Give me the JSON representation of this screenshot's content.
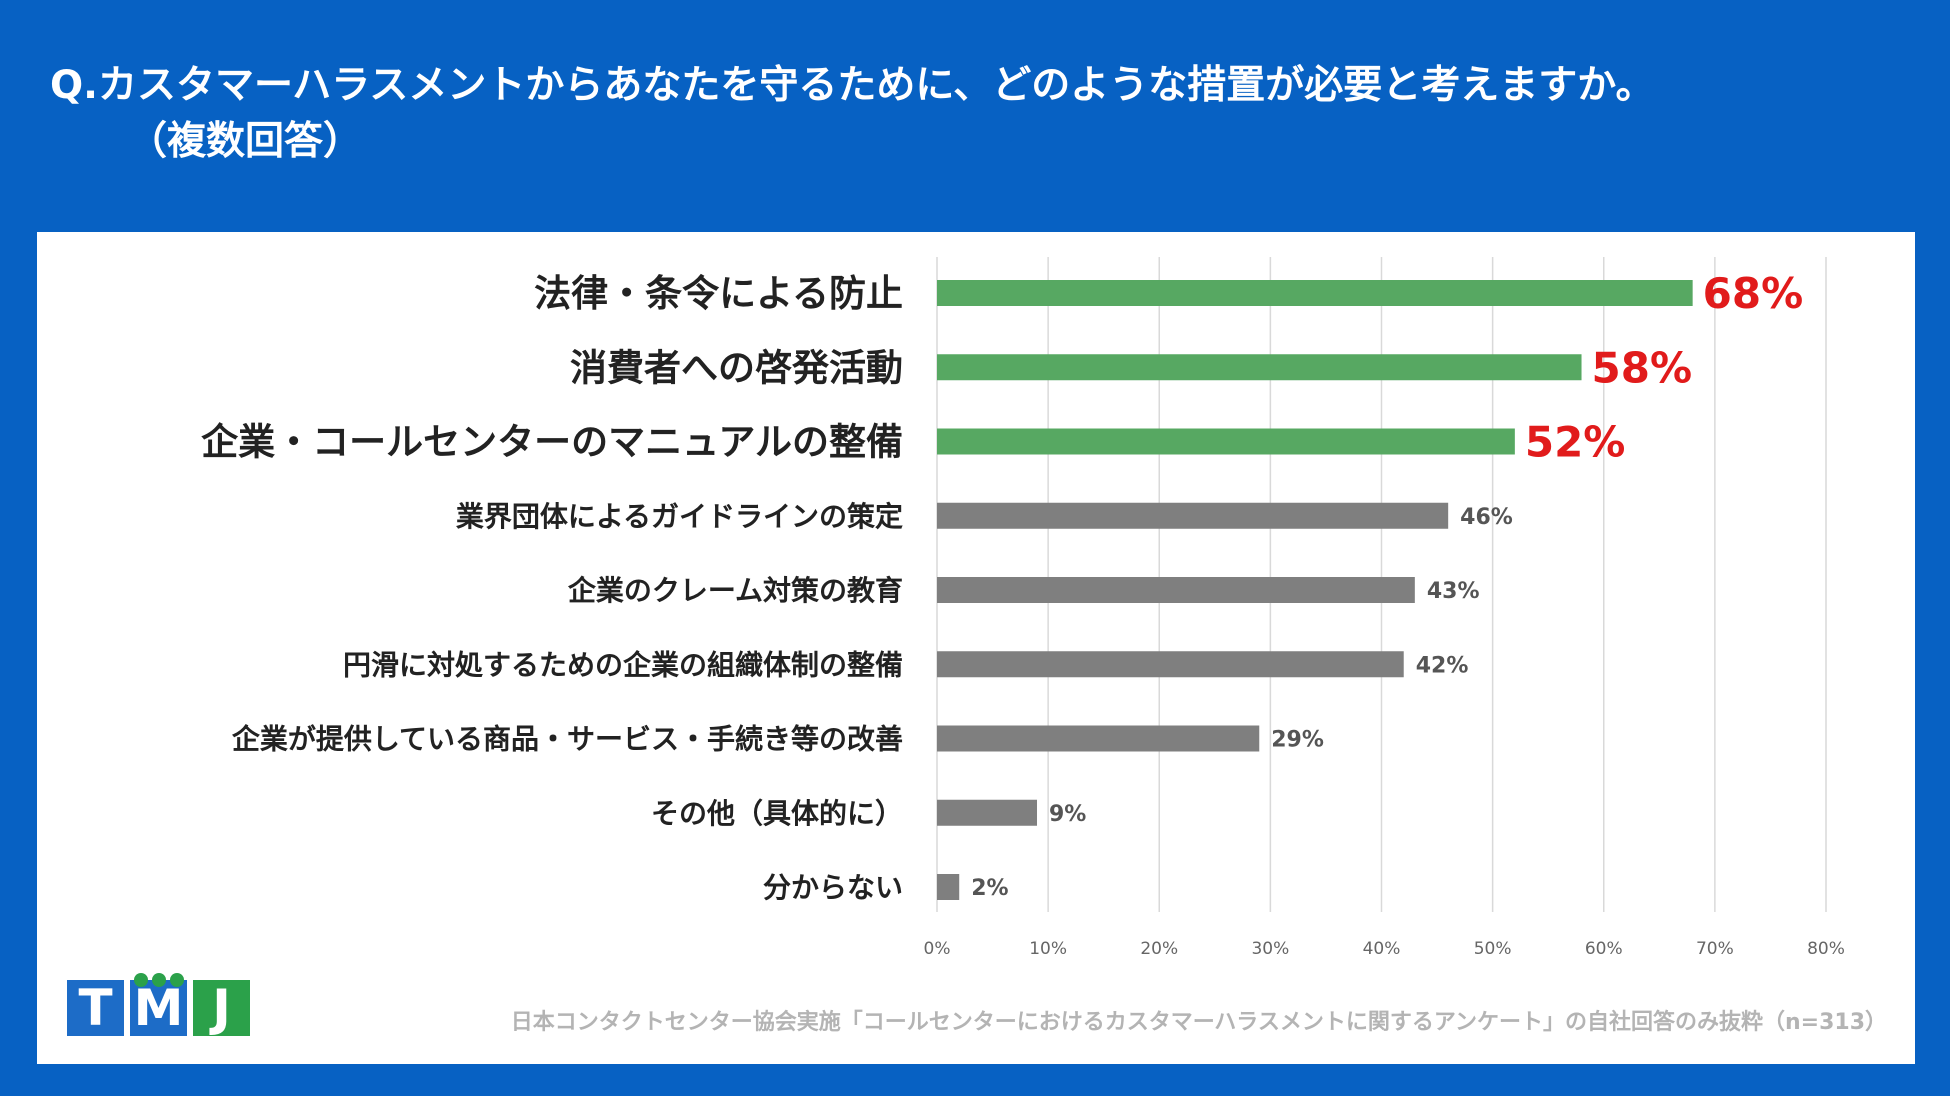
{
  "header": {
    "title_line1": "Q.カスタマーハラスメントからあなたを守るために、どのような措置が必要と考えますか。",
    "title_line2": "（複数回答）"
  },
  "chart_data": {
    "type": "bar",
    "orientation": "horizontal",
    "categories": [
      "法律・条令による防止",
      "消費者への啓発活動",
      "企業・コールセンターのマニュアルの整備",
      "業界団体によるガイドラインの策定",
      "企業のクレーム対策の教育",
      "円滑に対処するための企業の組織体制の整備",
      "企業が提供している商品・サービス・手続き等の改善",
      "その他（具体的に）",
      "分からない"
    ],
    "values": [
      68,
      58,
      52,
      46,
      43,
      42,
      29,
      9,
      2
    ],
    "value_labels": [
      "68%",
      "58%",
      "52%",
      "46%",
      "43%",
      "42%",
      "29%",
      "9%",
      "2%"
    ],
    "highlight_count": 3,
    "xlim": [
      0,
      80
    ],
    "x_ticks": [
      0,
      10,
      20,
      30,
      40,
      50,
      60,
      70,
      80
    ],
    "x_tick_labels": [
      "0%",
      "10%",
      "20%",
      "30%",
      "40%",
      "50%",
      "60%",
      "70%",
      "80%"
    ],
    "grid": true,
    "colors": {
      "highlight": "#57a862",
      "normal": "#7f7f7f",
      "highlight_label": "#e11b1b"
    }
  },
  "logo": {
    "letters": [
      "T",
      "M",
      "J"
    ]
  },
  "source": "日本コンタクトセンター協会実施「コールセンターにおけるカスタマーハラスメントに関するアンケート」の自社回答のみ抜粋（n=313）"
}
